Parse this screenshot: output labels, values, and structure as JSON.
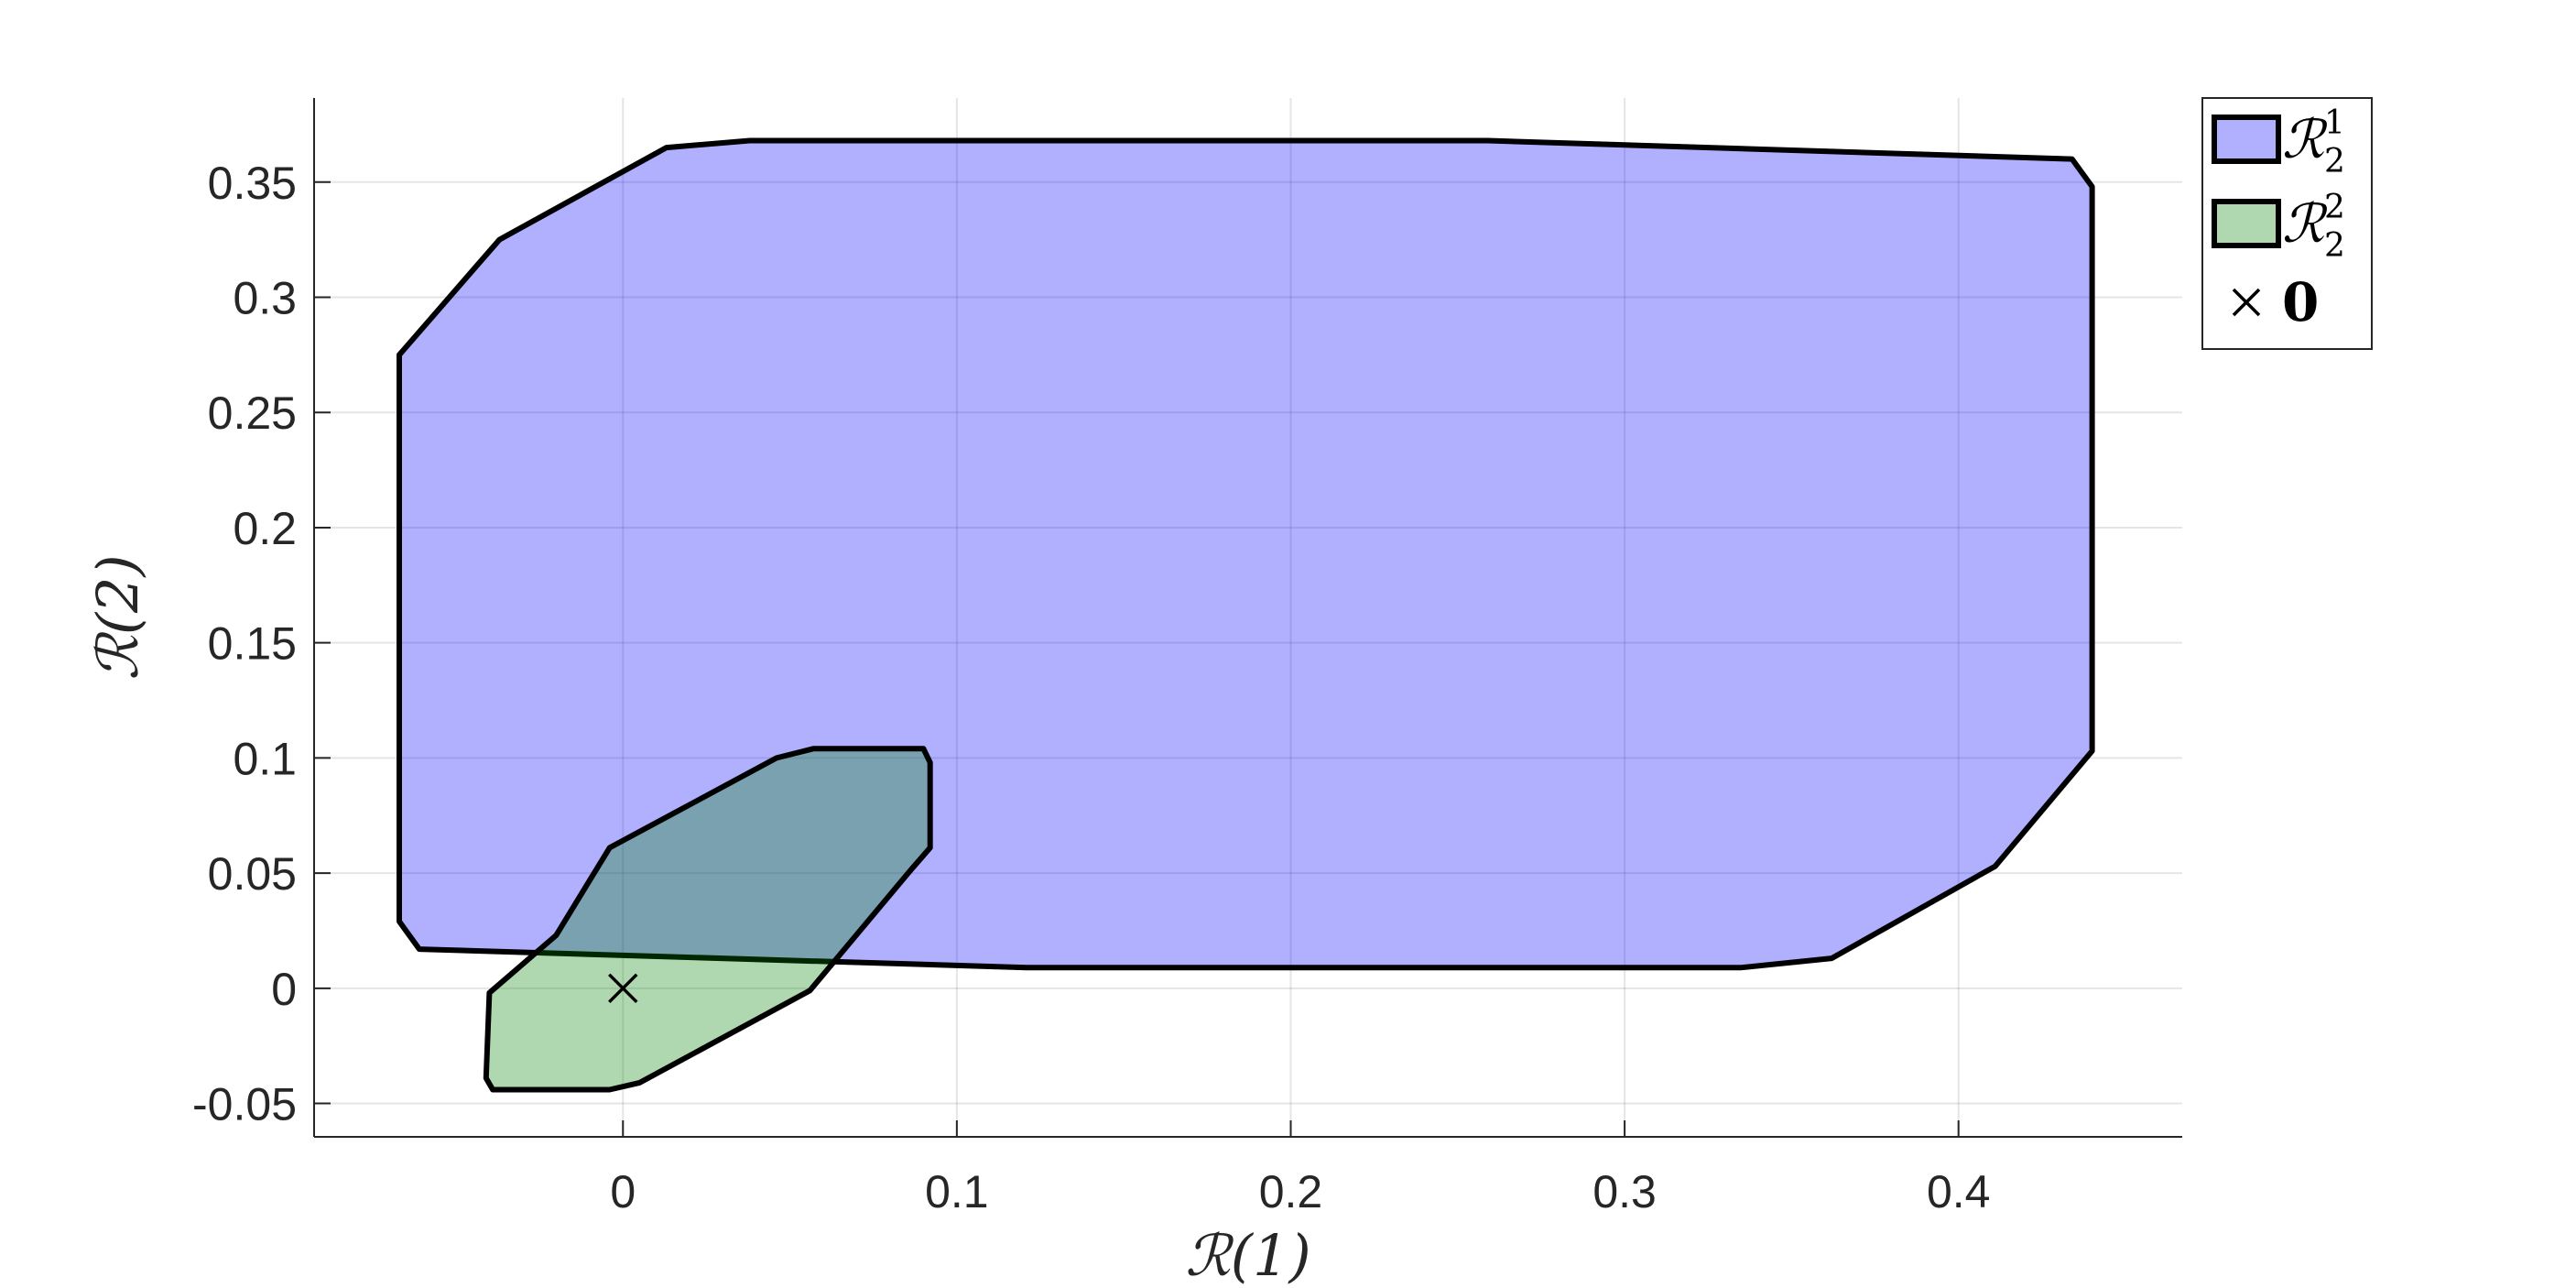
{
  "chart_data": {
    "type": "area",
    "title": "",
    "xlabel": "ℛ(1)",
    "ylabel": "ℛ(2)",
    "xlim": [
      -0.0925,
      0.467
    ],
    "ylim": [
      -0.0645,
      0.3865
    ],
    "xticks": [
      0,
      0.1,
      0.2,
      0.3,
      0.4
    ],
    "xtick_labels": [
      "0",
      "0.1",
      "0.2",
      "0.3",
      "0.4"
    ],
    "yticks": [
      -0.05,
      0,
      0.05,
      0.1,
      0.15,
      0.2,
      0.25,
      0.3,
      0.35
    ],
    "ytick_labels": [
      "-0.05",
      "0",
      "0.05",
      "0.1",
      "0.15",
      "0.2",
      "0.25",
      "0.3",
      "0.35"
    ],
    "grid": true,
    "legend_position": "outside-top-right",
    "series": [
      {
        "name": "ℛ",
        "name_sub": "2",
        "name_sup": "1",
        "fill": "#0000ff",
        "fill_opacity": 0.31,
        "edge": "#000000",
        "polygon": [
          [
            -0.067,
            0.029
          ],
          [
            -0.061,
            0.017
          ],
          [
            0.121,
            0.009
          ],
          [
            0.335,
            0.009
          ],
          [
            0.362,
            0.013
          ],
          [
            0.411,
            0.053
          ],
          [
            0.44,
            0.103
          ],
          [
            0.44,
            0.348
          ],
          [
            0.434,
            0.36
          ],
          [
            0.259,
            0.368
          ],
          [
            0.038,
            0.368
          ],
          [
            0.013,
            0.365
          ],
          [
            -0.037,
            0.325
          ],
          [
            -0.067,
            0.275
          ]
        ]
      },
      {
        "name": "ℛ",
        "name_sub": "2",
        "name_sup": "2",
        "fill": "#008000",
        "fill_opacity": 0.31,
        "edge": "#000000",
        "polygon": [
          [
            -0.04,
            -0.002
          ],
          [
            -0.02,
            0.023
          ],
          [
            -0.004,
            0.061
          ],
          [
            0.046,
            0.1
          ],
          [
            0.057,
            0.104
          ],
          [
            0.09,
            0.104
          ],
          [
            0.092,
            0.098
          ],
          [
            0.092,
            0.061
          ],
          [
            0.086,
            0.051
          ],
          [
            0.056,
            -0.001
          ],
          [
            0.005,
            -0.041
          ],
          [
            -0.004,
            -0.044
          ],
          [
            -0.039,
            -0.044
          ],
          [
            -0.041,
            -0.039
          ]
        ]
      }
    ],
    "markers": [
      {
        "name": "𝟎",
        "symbol": "×",
        "x": 0,
        "y": 0,
        "color": "#000000"
      }
    ]
  }
}
